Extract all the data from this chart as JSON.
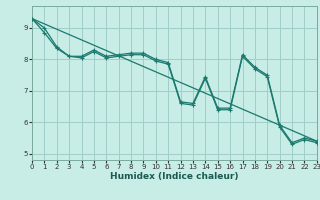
{
  "xlabel": "Humidex (Indice chaleur)",
  "bg_color": "#c8ece6",
  "grid_color": "#a0cec8",
  "line_color": "#1a7a6e",
  "xlim": [
    0,
    23
  ],
  "ylim": [
    4.8,
    9.7
  ],
  "yticks": [
    5,
    6,
    7,
    8,
    9
  ],
  "xticks": [
    0,
    1,
    2,
    3,
    4,
    5,
    6,
    7,
    8,
    9,
    10,
    11,
    12,
    13,
    14,
    15,
    16,
    17,
    18,
    19,
    20,
    21,
    22,
    23
  ],
  "series1": [
    9.3,
    9.0,
    8.4,
    8.1,
    8.1,
    8.3,
    8.1,
    8.15,
    8.2,
    8.2,
    8.0,
    7.9,
    6.65,
    6.6,
    7.45,
    6.45,
    6.45,
    8.15,
    7.75,
    7.5,
    5.9,
    5.35,
    5.5,
    5.4
  ],
  "series2": [
    9.3,
    8.85,
    8.35,
    8.1,
    8.05,
    8.25,
    8.05,
    8.1,
    8.15,
    8.15,
    7.95,
    7.85,
    6.6,
    6.55,
    7.4,
    6.4,
    6.4,
    8.1,
    7.7,
    7.45,
    5.85,
    5.3,
    5.45,
    5.35
  ],
  "trend_x": [
    0,
    23
  ],
  "trend_y": [
    9.3,
    5.4
  ],
  "xlabel_fontsize": 6.5,
  "xlabel_color": "#1a5a50",
  "tick_fontsize": 5.0,
  "line_width": 0.9,
  "marker_size": 2.5
}
